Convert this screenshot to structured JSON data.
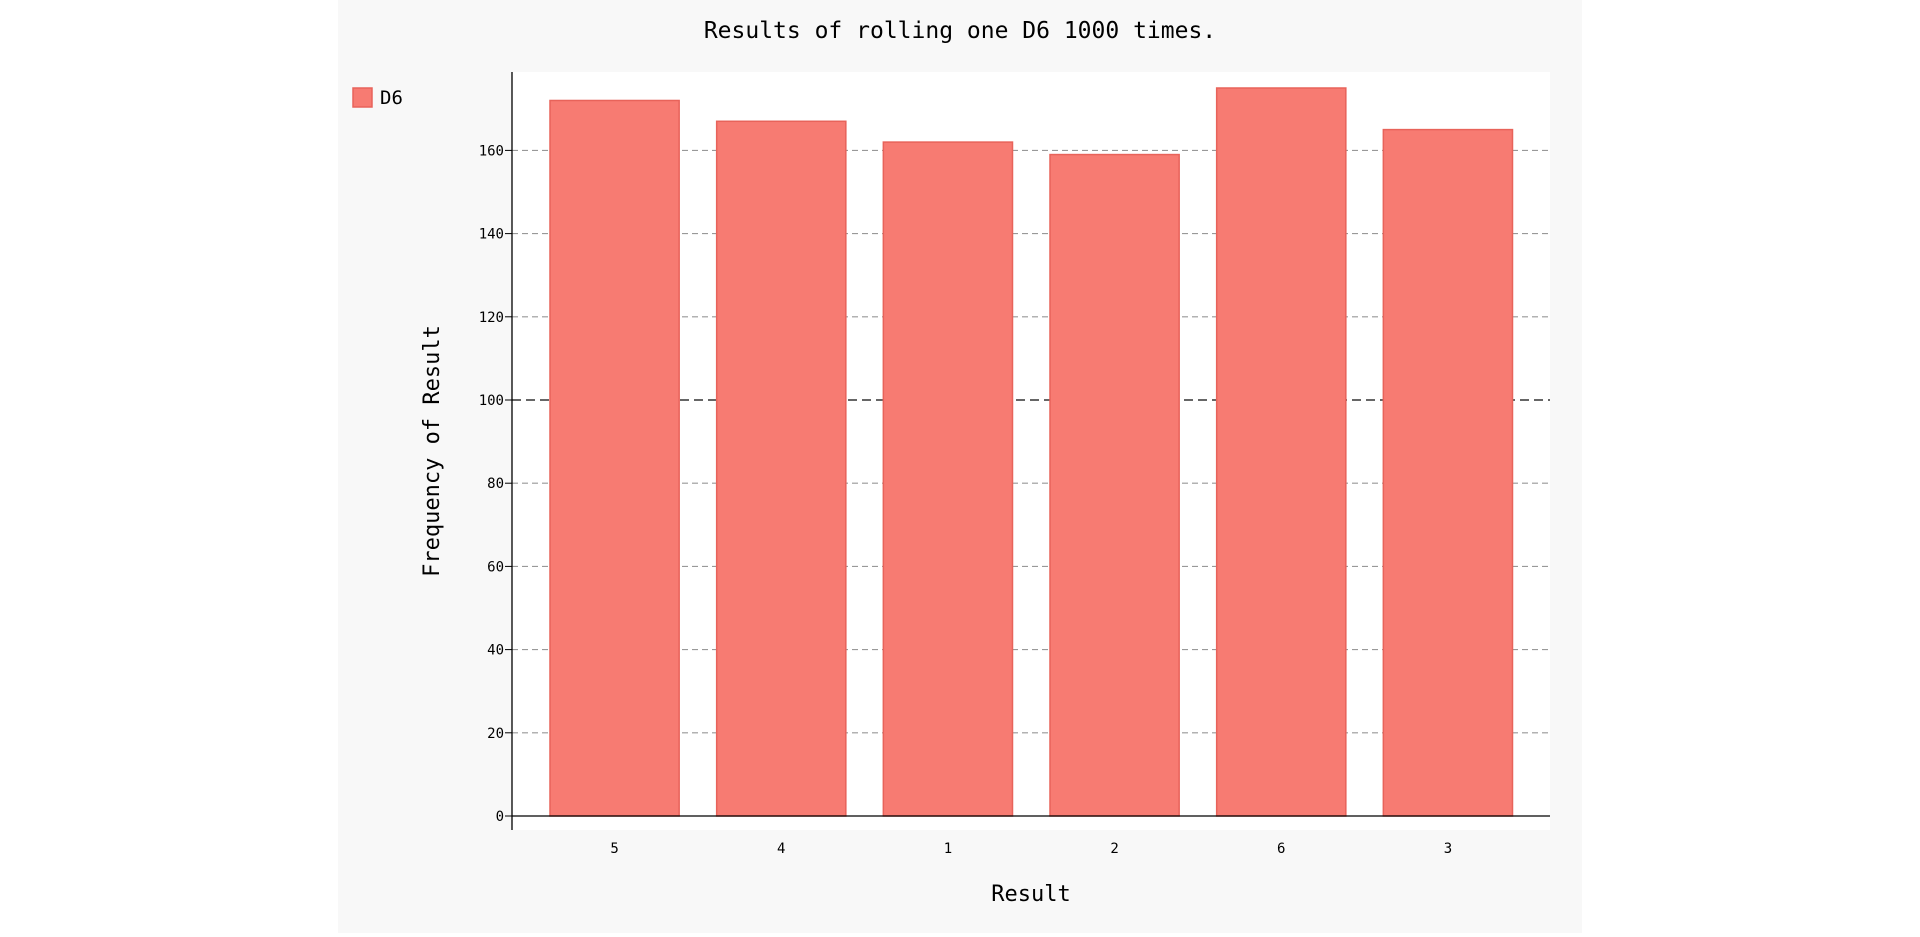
{
  "chart_data": {
    "type": "bar",
    "title": "Results of rolling one D6 1000 times.",
    "xlabel": "Result",
    "ylabel": "Frequency of Result",
    "categories": [
      "5",
      "4",
      "1",
      "2",
      "6",
      "3"
    ],
    "series": [
      {
        "name": "D6",
        "values": [
          172,
          167,
          162,
          159,
          175,
          165
        ]
      }
    ],
    "ylim": [
      0,
      175
    ],
    "yticks": [
      "0",
      "20",
      "40",
      "60",
      "80",
      "100",
      "120",
      "140",
      "160"
    ],
    "legend_position": "top-left",
    "grid": true
  },
  "colors": {
    "background": "#f8f8f8",
    "plot_background": "#ffffff",
    "bar_fill": "#f77b72",
    "bar_stroke": "#e8635a",
    "grid": "#999999",
    "grid_major": "#333333",
    "axis": "#000000",
    "text": "#000000"
  }
}
